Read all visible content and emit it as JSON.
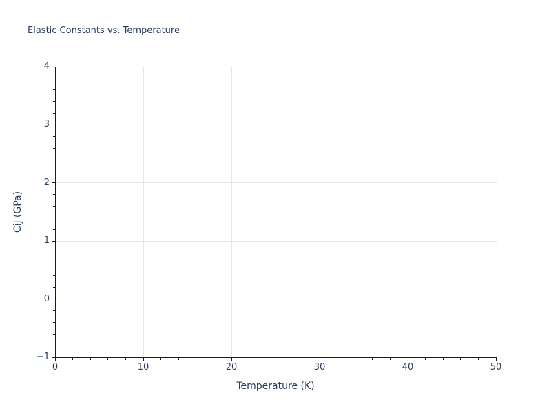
{
  "chart_data": {
    "type": "scatter",
    "title": "Elastic Constants vs. Temperature",
    "xlabel": "Temperature (K)",
    "ylabel": "Cij (GPa)",
    "xlim": [
      0,
      50
    ],
    "ylim": [
      -1,
      4
    ],
    "x_ticks": [
      0,
      10,
      20,
      30,
      40,
      50
    ],
    "x_tick_labels": [
      "0",
      "10",
      "20",
      "30",
      "40",
      "50"
    ],
    "y_ticks": [
      -1,
      0,
      1,
      2,
      3,
      4
    ],
    "y_tick_labels": [
      "−1",
      "0",
      "1",
      "2",
      "3",
      "4"
    ],
    "x_minor_step": 2,
    "y_minor_step": 0.2,
    "x_gridlines": [
      10,
      20,
      30,
      40
    ],
    "y_gridlines": [
      1,
      2,
      3
    ],
    "zero_gridline_y": 0,
    "grid": true,
    "legend_position": "none",
    "series": [],
    "colors": {
      "text": "#2a3f5f",
      "grid": "#e6e6e6",
      "zero_line": "#d0d0d0",
      "axis": "#1a1a1a",
      "background": "#ffffff"
    }
  }
}
